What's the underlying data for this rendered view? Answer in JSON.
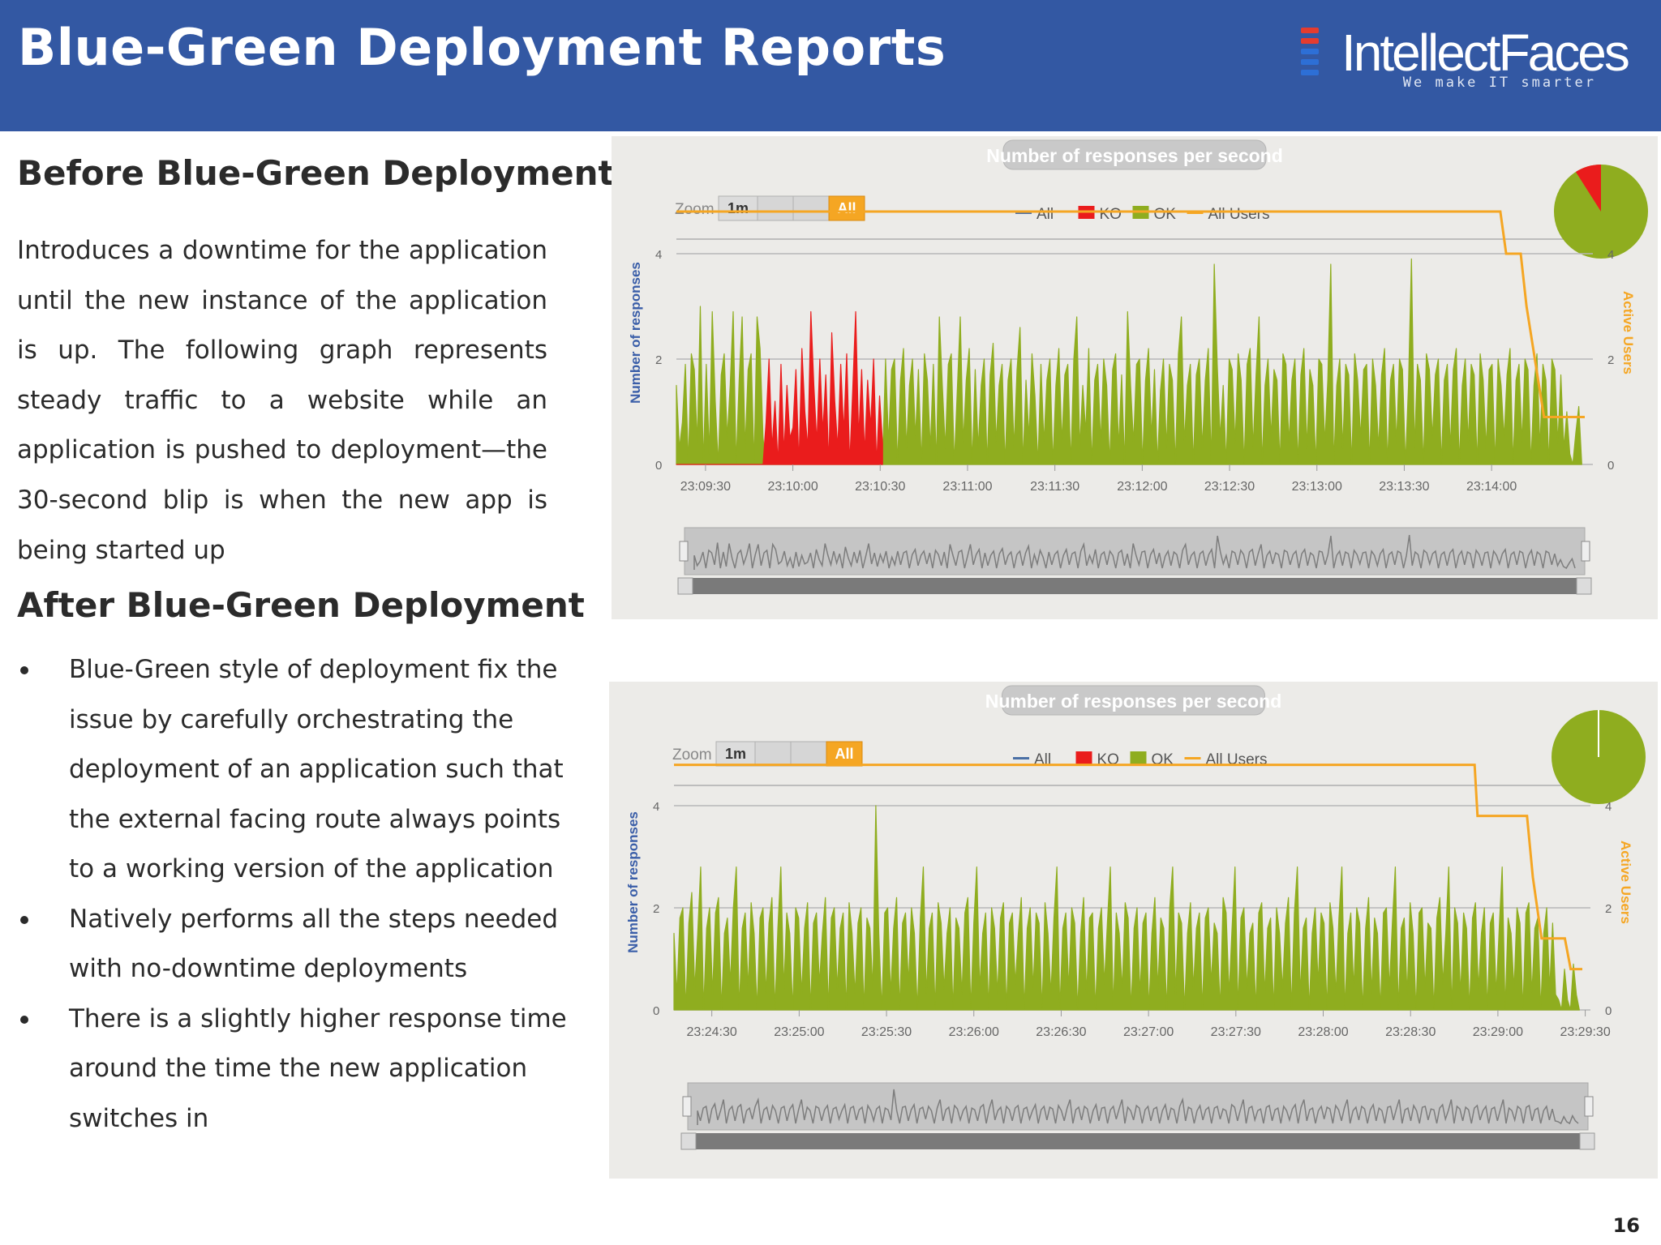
{
  "header": {
    "title": "Blue-Green Deployment Reports",
    "logo_name": "IntellectFaces",
    "logo_tagline": "We make IT smarter",
    "background": "#3358a3"
  },
  "before": {
    "heading": "Before Blue-Green Deployment",
    "paragraph": "Introduces a downtime for the application until the new instance of the application is up. The following graph represents steady traffic to a website while an application is pushed to deployment—the 30-second blip is when the new app is being started up"
  },
  "after": {
    "heading": "After Blue-Green Deployment",
    "bullets": [
      "Blue-Green style of deployment fix the issue by carefully orchestrating the deployment of an application such that the external facing route always points to a working version of the application",
      "Natively performs all the steps needed with no-downtime deployments",
      "There is a slightly higher response time around the time the new application switches in"
    ]
  },
  "page_number": "16",
  "colors": {
    "ok": "#8fad1f",
    "ko": "#ea1c1c",
    "users": "#f5a623",
    "axis_title": "#3a5ea8",
    "panel": "#ecebe8"
  },
  "chart_data": [
    {
      "type": "area",
      "title": "Number of responses per second",
      "zoom_label": "Zoom",
      "zoom_options": [
        "1m",
        "All"
      ],
      "legend": [
        "All",
        "KO",
        "OK",
        "All Users"
      ],
      "ylabel": "Number of responses",
      "y2label": "Active Users",
      "ylim": [
        0,
        5
      ],
      "y_ticks": [
        "0",
        "2",
        "4"
      ],
      "y2_ticks": [
        "0",
        "2",
        "4"
      ],
      "x_ticks": [
        "23:09:30",
        "23:10:00",
        "23:10:30",
        "23:11:00",
        "23:11:30",
        "23:12:00",
        "23:12:30",
        "23:13:00",
        "23:13:30",
        "23:14:00"
      ],
      "x_start_sec": 20,
      "x_end_sec": 332,
      "tick_start_sec": 30,
      "tick_step_sec": 30,
      "series": [
        {
          "name": "OK",
          "values": [
            1.5,
            0.3,
            0.8,
            1.9,
            0,
            2.1,
            1.8,
            0.4,
            3.0,
            0,
            1.9,
            0.2,
            2.9,
            1.2,
            0,
            1.7,
            2.1,
            0.5,
            1.5,
            2.9,
            0,
            1.6,
            2.8,
            0.3,
            1.8,
            2.1,
            0,
            2.8,
            2.2,
            0.5,
            0,
            0,
            0,
            0,
            0,
            0,
            0,
            0,
            0,
            0,
            0,
            0,
            0,
            0,
            0,
            0,
            0,
            0,
            0,
            0,
            0,
            0,
            0,
            0,
            0,
            0,
            0,
            0,
            0,
            0,
            0,
            0,
            0,
            0,
            0,
            0,
            0,
            0,
            0,
            0,
            2.0,
            0.4,
            1.8,
            2.0,
            0,
            1.6,
            2.2,
            0.3,
            1.5,
            2.0,
            0.5,
            1.8,
            0,
            2.1,
            1.6,
            0.3,
            1.9,
            0,
            2.8,
            1.5,
            0.3,
            1.9,
            2.1,
            0,
            1.4,
            2.8,
            0.4,
            1.6,
            2.2,
            0,
            1.8,
            0.3,
            1.5,
            2.0,
            0,
            1.7,
            2.3,
            0.4,
            1.5,
            1.9,
            0,
            1.6,
            2.0,
            0.3,
            1.8,
            2.6,
            0,
            1.6,
            0.5,
            2.1,
            1.3,
            0,
            1.9,
            0.4,
            1.6,
            2.0,
            0,
            1.5,
            2.2,
            0.4,
            1.7,
            1.9,
            0,
            2.0,
            2.8,
            0.3,
            1.5,
            0.6,
            2.2,
            0,
            1.6,
            1.9,
            0.4,
            2.0,
            1.5,
            0,
            1.8,
            2.1,
            0.3,
            1.7,
            0,
            2.9,
            1.5,
            0.4,
            1.9,
            2.0,
            0,
            1.6,
            2.2,
            0.5,
            1.8,
            0,
            1.4,
            2.0,
            0.3,
            1.9,
            1.6,
            0,
            2.1,
            2.8,
            0.4,
            1.5,
            1.9,
            0,
            1.7,
            2.0,
            0.3,
            1.6,
            2.2,
            0,
            3.8,
            1.9,
            0.5,
            1.5,
            0,
            2.0,
            1.8,
            0.4,
            2.1,
            1.6,
            0,
            1.9,
            2.2,
            0.3,
            1.7,
            2.8,
            0,
            1.5,
            2.0,
            0.5,
            1.8,
            1.6,
            0,
            2.1,
            1.9,
            0.4,
            1.6,
            2.0,
            0,
            1.7,
            2.2,
            0.3,
            1.8,
            1.5,
            0,
            2.0,
            1.9,
            0.4,
            1.6,
            3.8,
            0,
            1.5,
            2.0,
            0.3,
            1.9,
            1.7,
            0,
            2.1,
            1.6,
            0.5,
            1.8,
            1.9,
            0,
            2.0,
            1.5,
            0.3,
            1.7,
            2.2,
            0,
            1.6,
            1.9,
            0.4,
            2.0,
            1.8,
            0,
            1.5,
            3.9,
            0.3,
            1.9,
            1.6,
            0,
            2.1,
            1.8,
            0.5,
            1.7,
            2.0,
            0,
            1.6,
            1.9,
            0.3,
            1.8,
            2.2,
            0,
            1.5,
            2.0,
            0.4,
            1.9,
            1.7,
            0,
            2.1,
            1.6,
            0.3,
            1.8,
            1.9,
            0,
            2.0,
            1.5,
            0.5,
            1.7,
            2.2,
            0,
            1.6,
            1.9,
            0.4,
            2.0,
            1.8,
            0,
            1.5,
            2.1,
            0.3,
            1.9,
            1.6,
            0,
            2.0,
            1.8,
            0.4,
            1.7,
            0.3,
            1.0,
            0.2,
            0,
            0.6,
            1.1,
            0
          ]
        },
        {
          "name": "KO",
          "values": [
            0,
            0,
            0,
            0,
            0,
            0,
            0,
            0,
            0,
            0,
            0,
            0,
            0,
            0,
            0,
            0,
            0,
            0,
            0,
            0,
            0,
            0,
            0,
            0,
            0,
            0,
            0,
            0,
            0,
            0,
            0.8,
            2.0,
            0.3,
            1.2,
            0,
            1.9,
            0.2,
            1.5,
            0.5,
            0.7,
            1.8,
            0,
            2.2,
            1.0,
            0.3,
            2.9,
            1.5,
            0.4,
            2.0,
            0.6,
            1.7,
            0,
            2.5,
            1.2,
            0.3,
            1.9,
            0.6,
            2.1,
            0,
            1.4,
            2.9,
            0.5,
            1.8,
            0.2,
            1.6,
            0.7,
            2.0,
            0,
            1.3,
            0.4
          ]
        },
        {
          "name": "All Users",
          "values": [
            [
              20,
              4.8
            ],
            [
              303,
              4.8
            ],
            [
              305,
              4.0
            ],
            [
              310,
              4.0
            ],
            [
              312,
              3.0
            ],
            [
              318,
              0.9
            ],
            [
              332,
              0.9
            ]
          ]
        }
      ]
    },
    {
      "type": "area",
      "title": "Number of responses per second",
      "zoom_label": "Zoom",
      "zoom_options": [
        "1m",
        "All"
      ],
      "legend": [
        "All",
        "KO",
        "OK",
        "All Users"
      ],
      "ylabel": "Number of responses",
      "y2label": "Active Users",
      "ylim": [
        0,
        5
      ],
      "y_ticks": [
        "0",
        "2",
        "4"
      ],
      "y2_ticks": [
        "0",
        "2",
        "4"
      ],
      "x_ticks": [
        "23:24:30",
        "23:25:00",
        "23:25:30",
        "23:26:00",
        "23:26:30",
        "23:27:00",
        "23:27:30",
        "23:28:00",
        "23:28:30",
        "23:29:00",
        "23:29:30"
      ],
      "x_start_sec": 20,
      "x_end_sec": 332,
      "tick_start_sec": 33,
      "tick_step_sec": 30,
      "series": [
        {
          "name": "OK",
          "values": [
            1.5,
            0.3,
            1.8,
            2.0,
            0,
            1.7,
            2.3,
            0.4,
            1.5,
            2.8,
            0,
            1.6,
            2.0,
            0.3,
            1.9,
            2.2,
            0,
            1.5,
            1.8,
            0.5,
            2.0,
            2.8,
            0,
            1.6,
            1.9,
            0.4,
            2.1,
            1.5,
            0,
            1.8,
            2.0,
            0.3,
            1.7,
            2.2,
            0,
            1.6,
            2.8,
            0.4,
            1.9,
            1.5,
            0,
            2.0,
            1.8,
            0.3,
            1.6,
            2.1,
            0,
            1.7,
            1.9,
            0.5,
            1.5,
            2.2,
            0,
            1.8,
            2.0,
            0.4,
            1.6,
            1.9,
            0,
            2.1,
            1.5,
            0.3,
            1.7,
            2.0,
            0,
            1.8,
            1.6,
            0.4,
            4.0,
            1.5,
            0,
            1.9,
            2.0,
            0.3,
            1.6,
            2.2,
            0,
            1.7,
            1.9,
            0.5,
            2.0,
            1.5,
            0,
            1.8,
            2.8,
            0.3,
            1.6,
            1.9,
            0,
            2.1,
            1.7,
            0.4,
            1.5,
            2.0,
            0,
            1.8,
            1.6,
            0.3,
            1.9,
            2.2,
            0,
            1.7,
            2.8,
            0.4,
            1.5,
            1.9,
            0,
            2.0,
            1.6,
            0.3,
            1.8,
            2.1,
            0,
            1.7,
            1.9,
            0.5,
            1.5,
            2.2,
            0,
            1.6,
            2.0,
            0.4,
            1.9,
            1.7,
            0,
            2.1,
            1.5,
            0.3,
            1.8,
            2.8,
            0,
            1.6,
            1.9,
            0.4,
            2.0,
            1.7,
            0,
            1.5,
            2.2,
            0.3,
            1.8,
            1.9,
            0,
            1.6,
            2.0,
            0.5,
            1.7,
            2.8,
            0,
            1.9,
            1.5,
            0.4,
            2.1,
            1.8,
            0,
            1.6,
            2.0,
            0.3,
            1.7,
            1.9,
            0,
            1.5,
            2.2,
            0.4,
            1.8,
            1.6,
            0,
            2.0,
            2.8,
            0.3,
            1.9,
            1.7,
            0,
            1.5,
            2.1,
            0.4,
            1.6,
            1.9,
            0,
            1.8,
            2.0,
            0.5,
            1.7,
            1.5,
            0,
            2.2,
            1.9,
            0.3,
            1.6,
            2.8,
            0,
            1.8,
            2.0,
            0.4,
            1.5,
            1.7,
            0,
            1.9,
            2.1,
            0.3,
            1.6,
            1.8,
            0,
            2.0,
            1.5,
            0.4,
            1.7,
            2.2,
            0,
            1.9,
            2.8,
            0.3,
            1.6,
            1.8,
            0,
            1.5,
            2.0,
            0.5,
            1.9,
            1.7,
            0,
            2.1,
            1.6,
            0.3,
            1.8,
            2.8,
            0,
            1.5,
            1.9,
            0.4,
            2.0,
            1.7,
            0,
            1.6,
            2.2,
            0.3,
            1.8,
            1.5,
            0,
            1.9,
            2.0,
            0.4,
            1.7,
            2.8,
            0,
            1.6,
            1.8,
            0.3,
            2.1,
            1.5,
            0,
            1.9,
            2.0,
            0.4,
            1.7,
            1.6,
            0,
            1.8,
            2.2,
            0.5,
            1.5,
            2.8,
            0,
            2.0,
            1.7,
            0.3,
            1.9,
            1.6,
            0,
            1.8,
            2.1,
            0.4,
            1.5,
            2.0,
            0,
            1.7,
            1.9,
            0.3,
            1.6,
            2.8,
            0,
            1.8,
            1.5,
            0.4,
            2.0,
            1.7,
            0,
            1.9,
            2.1,
            0.3,
            1.6,
            1.8,
            0,
            1.5,
            2.0,
            0.4,
            1.7,
            0.3,
            0.2,
            0,
            0.8,
            0.2,
            0,
            0.9,
            0.3,
            0
          ]
        },
        {
          "name": "KO",
          "values": []
        },
        {
          "name": "All Users",
          "values": [
            [
              20,
              4.8
            ],
            [
              295,
              4.8
            ],
            [
              296,
              3.8
            ],
            [
              313,
              3.8
            ],
            [
              315,
              2.6
            ],
            [
              318,
              1.4
            ],
            [
              326,
              1.4
            ],
            [
              328,
              0.8
            ],
            [
              332,
              0.8
            ]
          ]
        }
      ]
    }
  ]
}
